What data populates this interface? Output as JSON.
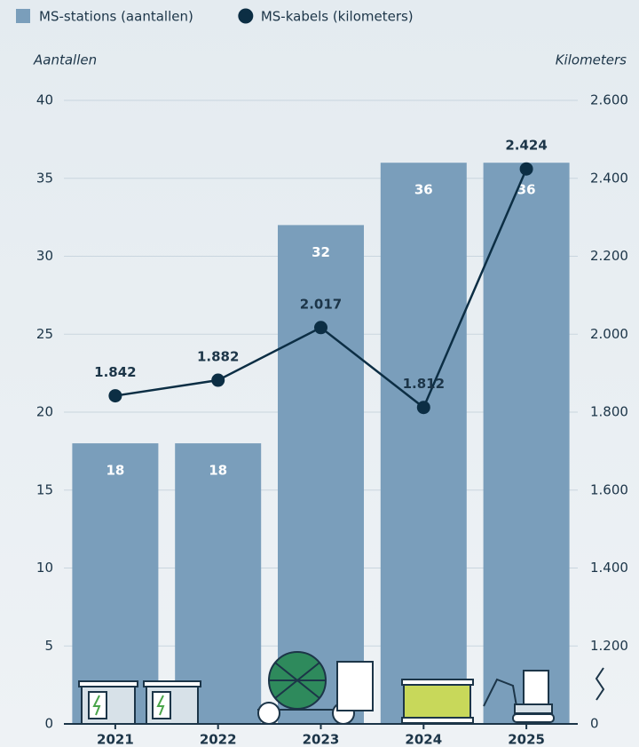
{
  "chart_data": {
    "type": "bar-line",
    "y_axis_label": "Aantallen",
    "y2_axis_label": "Kilometers",
    "categories": [
      "2021",
      "2022",
      "2023",
      "2024",
      "2025"
    ],
    "series": [
      {
        "name": "MS-stations (aantallen)",
        "type": "bar",
        "color": "#7a9ebb",
        "values": [
          18,
          18,
          32,
          36,
          36
        ]
      },
      {
        "name": "MS-kabels (kilometers)",
        "type": "line",
        "axis": "y2",
        "color": "#0c2e44",
        "values": [
          1842,
          1882,
          2017,
          1812,
          2424
        ],
        "value_labels": [
          "1.842",
          "1.882",
          "2.017",
          "1.812",
          "2.424"
        ]
      }
    ],
    "ylim": [
      0,
      40
    ],
    "yticks": [
      0,
      5,
      10,
      15,
      20,
      25,
      30,
      35,
      40
    ],
    "y2lim": [
      0,
      2600
    ],
    "y2break": [
      0,
      1000
    ],
    "y2ticks": [
      {
        "value": 0,
        "label": "0"
      },
      {
        "value": 1200,
        "label": "1.200"
      },
      {
        "value": 1400,
        "label": "1.400"
      },
      {
        "value": 1600,
        "label": "1.600"
      },
      {
        "value": 1800,
        "label": "1.800"
      },
      {
        "value": 2000,
        "label": "2.000"
      },
      {
        "value": 2200,
        "label": "2.200"
      },
      {
        "value": 2400,
        "label": "2.400"
      },
      {
        "value": 2600,
        "label": "2.600"
      }
    ],
    "grid": true
  }
}
